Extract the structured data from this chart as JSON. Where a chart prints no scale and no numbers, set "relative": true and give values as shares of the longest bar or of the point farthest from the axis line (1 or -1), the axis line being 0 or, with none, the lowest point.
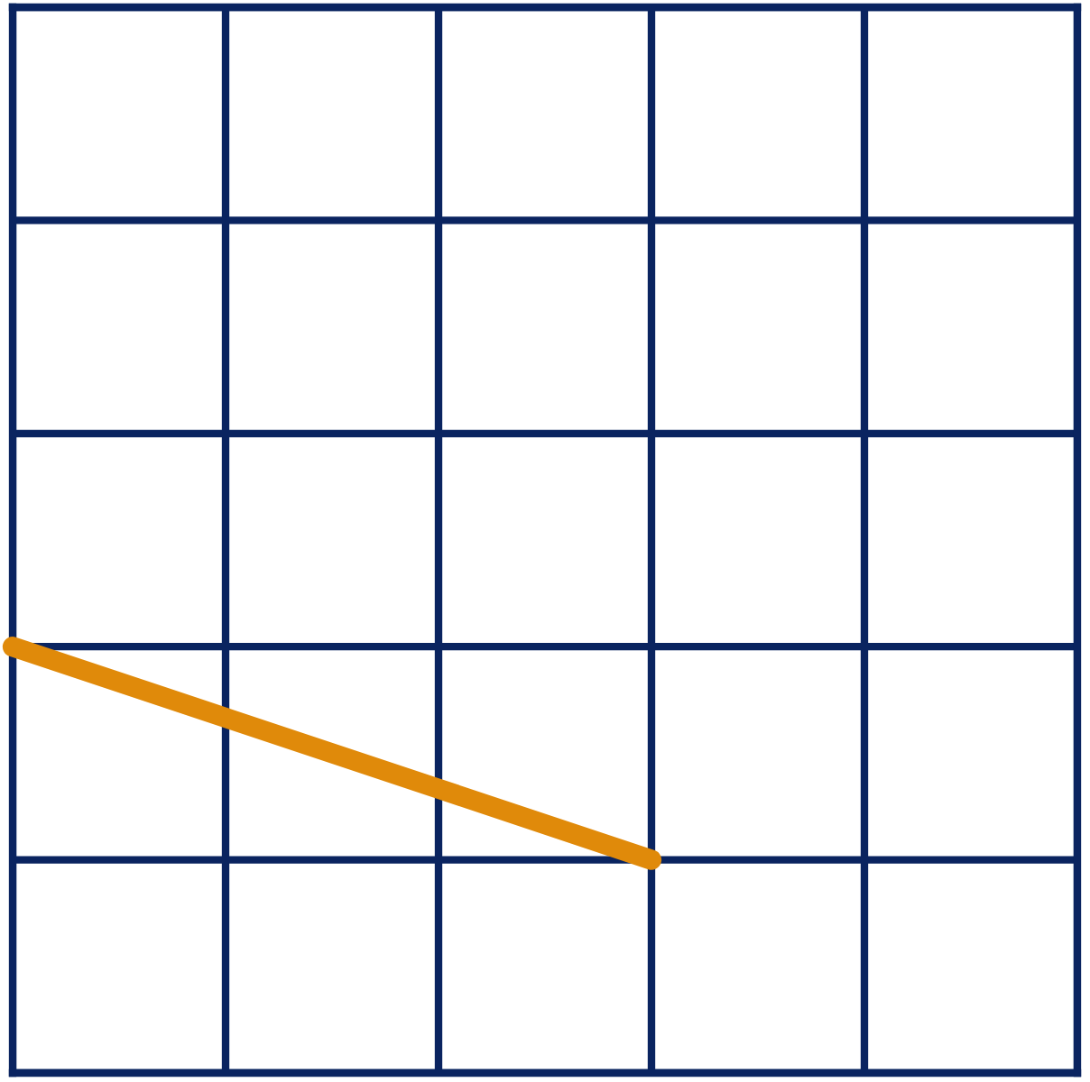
{
  "chart_data": {
    "type": "line",
    "relative": true,
    "categories": [
      null,
      null,
      null,
      null,
      null,
      null
    ],
    "series": [
      {
        "color": "#e08a0a",
        "values": [
          1,
          0.8333,
          0.6667,
          0.5,
          null,
          null
        ]
      }
    ],
    "grid": true,
    "line_style": "solid"
  }
}
